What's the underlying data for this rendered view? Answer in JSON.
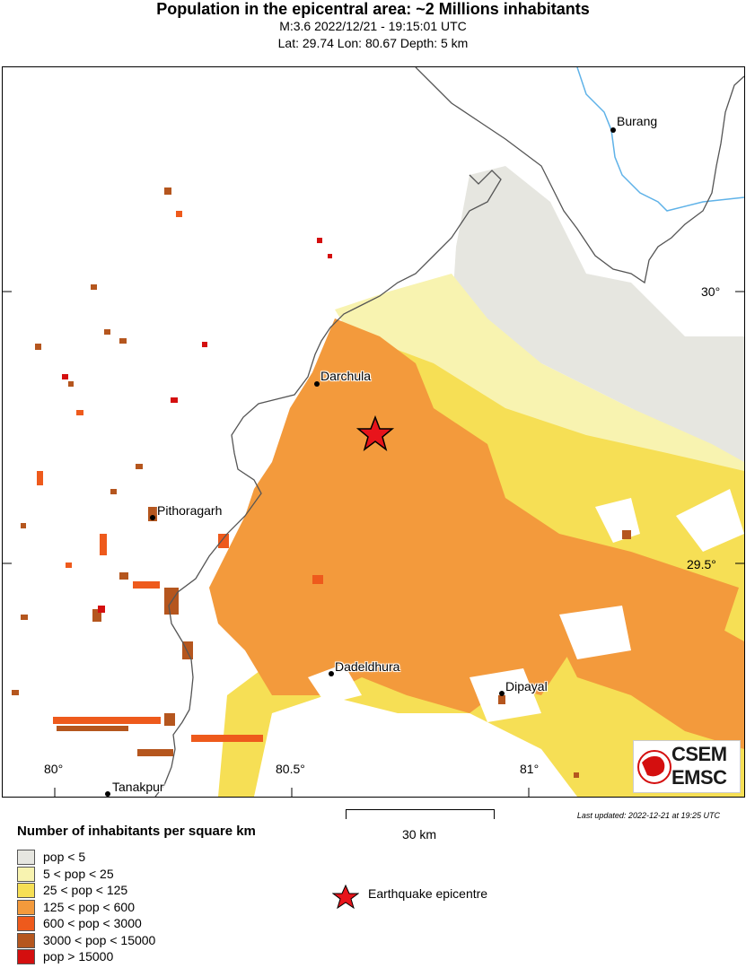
{
  "header": {
    "title": "Population in the epicentral area: ~2 Millions inhabitants",
    "subtitle1": "M:3.6 2022/12/21 - 19:15:01 UTC",
    "subtitle2": "Lat: 29.74 Lon: 80.67 Depth: 5 km"
  },
  "map": {
    "cities": [
      {
        "key": "burang",
        "name": "Burang"
      },
      {
        "key": "darchula",
        "name": "Darchula"
      },
      {
        "key": "pithoragarh",
        "name": "Pithoragarh"
      },
      {
        "key": "dadeldhura",
        "name": "Dadeldhura"
      },
      {
        "key": "dipayal",
        "name": "Dipayal"
      },
      {
        "key": "tanakpur",
        "name": "Tanakpur"
      }
    ],
    "lon_ticks": [
      "80°",
      "80.5°",
      "81°"
    ],
    "lat_ticks": [
      "30°",
      "29.5°"
    ],
    "epicenter": {
      "lat": 29.74,
      "lon": 80.67
    }
  },
  "scale": {
    "label": "30 km"
  },
  "updated": "Last updated: 2022-12-21 at 19:25 UTC",
  "logo": {
    "line1": "CSEM",
    "line2": "EMSC"
  },
  "legend": {
    "title": "Number of inhabitants per square km",
    "items": [
      {
        "label": "pop < 5",
        "color": "#e6e6e0"
      },
      {
        "label": "5 < pop < 25",
        "color": "#f8f3b0"
      },
      {
        "label": "25 < pop < 125",
        "color": "#f6df55"
      },
      {
        "label": "125 < pop < 600",
        "color": "#f39a3c"
      },
      {
        "label": "600 < pop < 3000",
        "color": "#ee5a1c"
      },
      {
        "label": "3000 < pop < 15000",
        "color": "#b5561e"
      },
      {
        "label": "pop > 15000",
        "color": "#d40f0f"
      }
    ],
    "epicentre_label": "Earthquake epicentre",
    "epicentre_color": "#e8141b"
  }
}
